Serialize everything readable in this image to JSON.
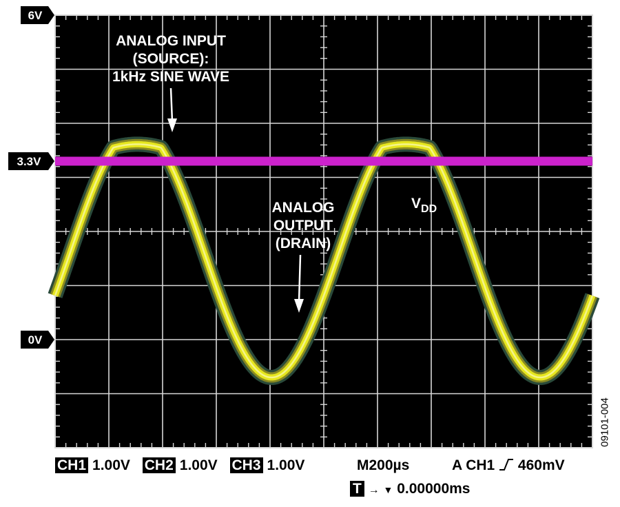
{
  "chart_data": {
    "type": "line",
    "title": "",
    "xlabel": "",
    "ylabel": "",
    "grid": true,
    "x_divisions": 10,
    "y_divisions": 8,
    "x_div_seconds": 0.0002,
    "y_div_volts": 1.0,
    "screen_y_range_volts": [
      -2.0,
      6.0
    ],
    "series": [
      {
        "name": "",
        "color": "#e6e61e",
        "signal": "sine_clipped",
        "frequency_hz": 1000,
        "amplitude_v": 2.3,
        "offset_v": 1.6,
        "clip_high_v": 3.55,
        "phase_deg": -20
      },
      {
        "name": "",
        "color": "#cc22cc",
        "signal": "dc",
        "level_v": 3.3
      }
    ],
    "level_markers": [
      {
        "label": "6V",
        "value": 6.0
      },
      {
        "label": "3.3V",
        "value": 3.3
      },
      {
        "label": "0V",
        "value": 0.0
      }
    ],
    "annotations": {
      "input": [
        "ANALOG INPUT",
        "(SOURCE):",
        "1kHz SINE WAVE"
      ],
      "output": [
        "ANALOG",
        "OUTPUT",
        "(DRAIN)"
      ],
      "vdd_main": "V",
      "vdd_sub": "DD"
    }
  },
  "status": {
    "ch1_label": "CH1",
    "ch1_scale": "1.00V",
    "ch2_label": "CH2",
    "ch2_scale": "1.00V",
    "ch3_label": "CH3",
    "ch3_scale": "1.00V",
    "timebase": "M200µs",
    "trigger": "A  CH1",
    "trigger_level": "460mV",
    "t_label": "T",
    "trigger_position": "0.00000ms"
  },
  "figure_id": "09101-004",
  "colors": {
    "screen": "#000000",
    "grid": "#d8d8d8",
    "ch1": "#e6e61e",
    "ch1_glow": "#2a4a3a",
    "ch2": "#cc22cc"
  }
}
